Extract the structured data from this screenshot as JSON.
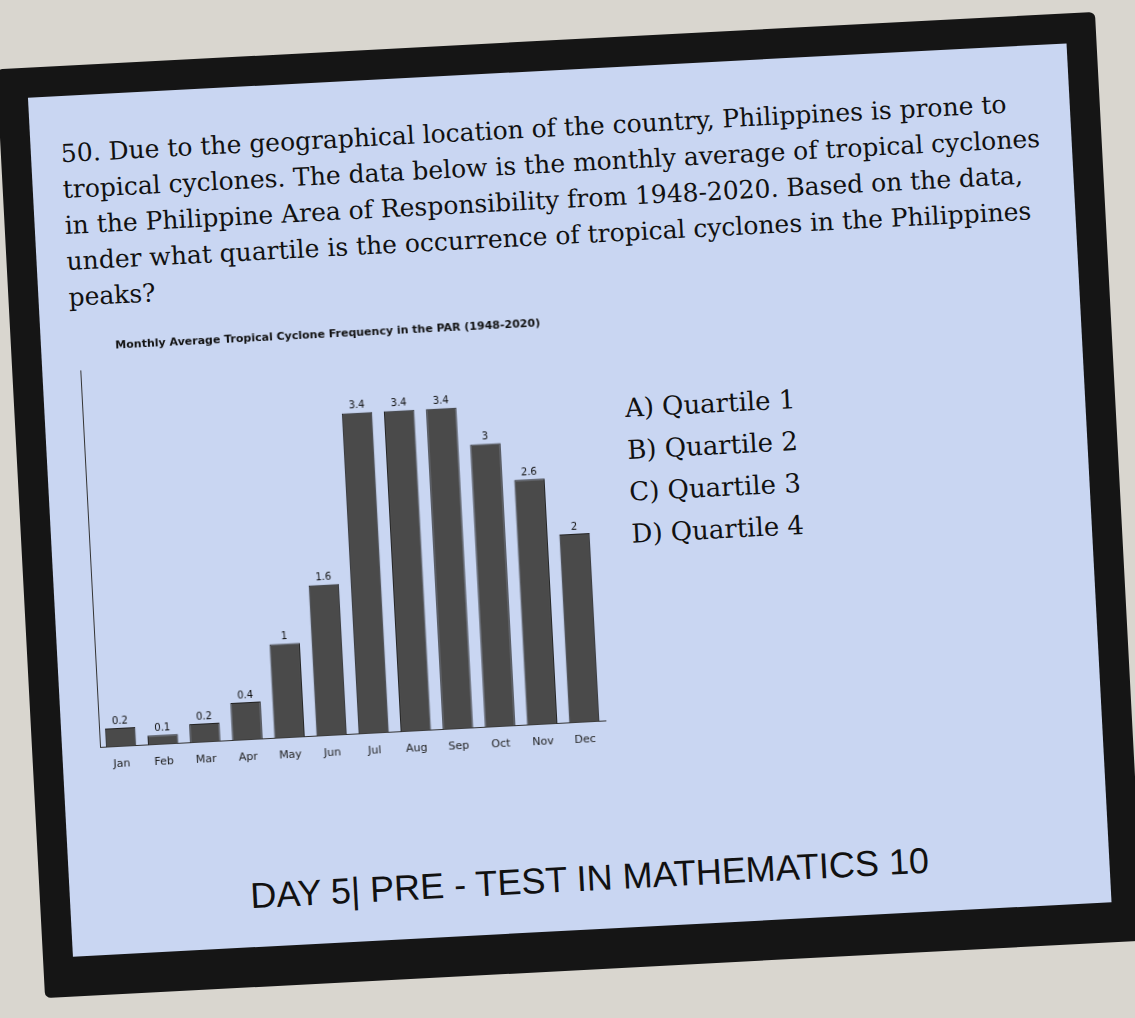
{
  "question": "50. Due to the geographical location of the country, Philippines is prone to tropical cyclones. The data below is the monthly average of tropical cyclones in the Philippine Area of Responsibility from 1948-2020. Based on the data, under what quartile is the occurrence of tropical cyclones in the Philippines peaks?",
  "choices": [
    "A) Quartile 1",
    "B) Quartile 2",
    "C) Quartile 3",
    "D) Quartile 4"
  ],
  "footer": "DAY 5| PRE - TEST IN MATHEMATICS 10",
  "chart_data": {
    "type": "bar",
    "title": "Monthly Average Tropical Cyclone Frequency in the PAR (1948-2020)",
    "categories": [
      "Jan",
      "Feb",
      "Mar",
      "Apr",
      "May",
      "Jun",
      "Jul",
      "Aug",
      "Sep",
      "Oct",
      "Nov",
      "Dec"
    ],
    "values": [
      0.2,
      0.1,
      0.2,
      0.4,
      1.0,
      1.6,
      3.4,
      3.4,
      3.4,
      3.0,
      2.6,
      2.0
    ],
    "color": "#4a4a4a",
    "ylim": [
      0,
      4
    ],
    "grid": false,
    "data_labels": true,
    "tick_labels": "x"
  }
}
